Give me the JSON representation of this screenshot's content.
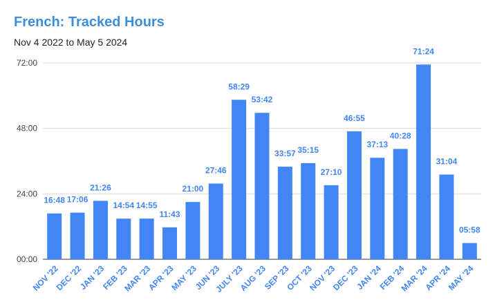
{
  "colors": {
    "accent": "#4285f4",
    "title": "#3c8ddc",
    "grid": "#d9d9d9"
  },
  "chart_data": {
    "type": "bar",
    "title": "French: Tracked Hours",
    "subtitle": "Nov 4 2022 to May 5 2024",
    "xlabel": "",
    "ylabel": "",
    "ylim": [
      0,
      72
    ],
    "yticks": [
      {
        "value": 0,
        "label": "00:00"
      },
      {
        "value": 24,
        "label": "24:00"
      },
      {
        "value": 48,
        "label": "48:00"
      },
      {
        "value": 72,
        "label": "72:00"
      }
    ],
    "grid": true,
    "legend": "none",
    "categories": [
      "NOV '22",
      "DEC '22",
      "JAN '23",
      "FEB '23",
      "MAR '23",
      "APR '23",
      "MAY '23",
      "JUN '23",
      "JULY '23",
      "AUG '23",
      "SEP '23",
      "OCT '23",
      "NOV '23",
      "DEC '23",
      "JAN '24",
      "FEB '24",
      "MAR '24",
      "APR '24",
      "MAY '24"
    ],
    "labels": [
      "16:48",
      "17:06",
      "21:26",
      "14:54",
      "14:55",
      "11:43",
      "21:00",
      "27:46",
      "58:29",
      "53:42",
      "33:57",
      "35:15",
      "27:10",
      "46:55",
      "37:13",
      "40:28",
      "71:24",
      "31:04",
      "05:58"
    ],
    "values": [
      16.8,
      17.1,
      21.433,
      14.9,
      14.917,
      11.717,
      21.0,
      27.767,
      58.483,
      53.7,
      33.95,
      35.25,
      27.167,
      46.917,
      37.217,
      40.467,
      71.4,
      31.067,
      5.967
    ]
  }
}
